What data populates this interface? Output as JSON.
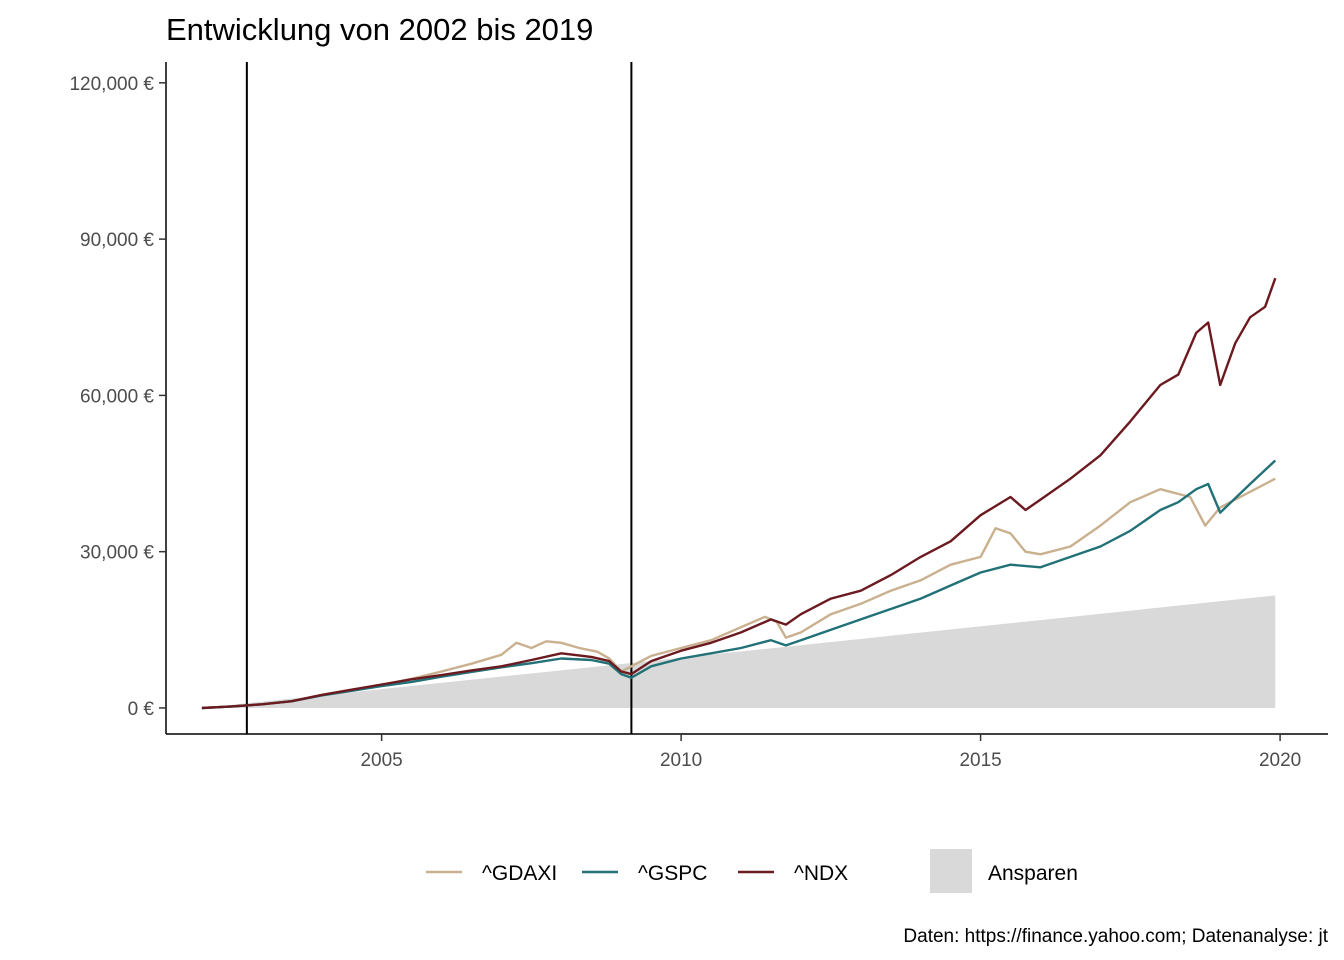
{
  "chart_data": {
    "type": "line",
    "title": "Entwicklung von 2002 bis 2019",
    "caption": "Daten: https://finance.yahoo.com; Datenanalyse: jt",
    "xlabel": "",
    "ylabel": "",
    "xlim": [
      2001.4,
      2020.8
    ],
    "ylim": [
      -5000,
      124000
    ],
    "x_ticks": [
      2005,
      2010,
      2015,
      2020
    ],
    "y_ticks": [
      {
        "value": 0,
        "label": "0 €"
      },
      {
        "value": 30000,
        "label": "30,000 €"
      },
      {
        "value": 60000,
        "label": "60,000 €"
      },
      {
        "value": 90000,
        "label": "90,000 €"
      },
      {
        "value": 120000,
        "label": "120,000 €"
      }
    ],
    "vertical_lines": [
      2002.75,
      2009.17
    ],
    "grid": false,
    "legend_position": "bottom",
    "area": {
      "name": "Ansparen",
      "color": "#d9d9d9",
      "x": [
        2002.0,
        2019.92
      ],
      "y": [
        0,
        21600
      ]
    },
    "series": [
      {
        "name": "^GDAXI",
        "color": "#c9b08f",
        "x": [
          2002.0,
          2002.5,
          2003.0,
          2003.5,
          2004.0,
          2004.5,
          2005.0,
          2005.5,
          2006.0,
          2006.5,
          2007.0,
          2007.25,
          2007.5,
          2007.75,
          2008.0,
          2008.3,
          2008.6,
          2008.8,
          2009.0,
          2009.17,
          2009.5,
          2010.0,
          2010.5,
          2011.0,
          2011.4,
          2011.6,
          2011.75,
          2012.0,
          2012.5,
          2013.0,
          2013.5,
          2014.0,
          2014.5,
          2015.0,
          2015.25,
          2015.5,
          2015.75,
          2016.0,
          2016.5,
          2017.0,
          2017.5,
          2018.0,
          2018.5,
          2018.75,
          2019.0,
          2019.5,
          2019.92
        ],
        "y": [
          0,
          300,
          700,
          1300,
          2500,
          3500,
          4400,
          5600,
          7000,
          8500,
          10200,
          12500,
          11500,
          12800,
          12500,
          11500,
          10800,
          9500,
          7000,
          8000,
          10000,
          11500,
          13000,
          15500,
          17500,
          16500,
          13500,
          14500,
          18000,
          20000,
          22500,
          24500,
          27500,
          29000,
          34500,
          33500,
          30000,
          29500,
          31000,
          35000,
          39500,
          42000,
          40500,
          35000,
          38500,
          41500,
          44000
        ]
      },
      {
        "name": "^GSPC",
        "color": "#217177",
        "x": [
          2002.0,
          2002.5,
          2003.0,
          2003.5,
          2004.0,
          2004.5,
          2005.0,
          2005.5,
          2006.0,
          2006.5,
          2007.0,
          2007.5,
          2008.0,
          2008.5,
          2008.8,
          2009.0,
          2009.17,
          2009.5,
          2010.0,
          2010.5,
          2011.0,
          2011.5,
          2011.75,
          2012.0,
          2012.5,
          2013.0,
          2013.5,
          2014.0,
          2014.5,
          2015.0,
          2015.5,
          2016.0,
          2016.5,
          2017.0,
          2017.5,
          2018.0,
          2018.3,
          2018.6,
          2018.8,
          2019.0,
          2019.5,
          2019.92
        ],
        "y": [
          0,
          300,
          700,
          1300,
          2400,
          3300,
          4200,
          5000,
          6000,
          6900,
          7800,
          8600,
          9500,
          9200,
          8500,
          6500,
          5800,
          8000,
          9500,
          10500,
          11500,
          13000,
          12000,
          13000,
          15000,
          17000,
          19000,
          21000,
          23500,
          26000,
          27500,
          27000,
          29000,
          31000,
          34000,
          38000,
          39500,
          42000,
          43000,
          37500,
          43000,
          47500
        ]
      },
      {
        "name": "^NDX",
        "color": "#6b1a20",
        "x": [
          2002.0,
          2002.5,
          2003.0,
          2003.5,
          2004.0,
          2004.5,
          2005.0,
          2005.5,
          2006.0,
          2006.5,
          2007.0,
          2007.5,
          2008.0,
          2008.5,
          2008.8,
          2009.0,
          2009.17,
          2009.5,
          2010.0,
          2010.5,
          2011.0,
          2011.5,
          2011.75,
          2012.0,
          2012.5,
          2013.0,
          2013.5,
          2014.0,
          2014.5,
          2015.0,
          2015.5,
          2015.75,
          2016.0,
          2016.5,
          2017.0,
          2017.5,
          2018.0,
          2018.3,
          2018.6,
          2018.8,
          2019.0,
          2019.25,
          2019.5,
          2019.75,
          2019.92
        ],
        "y": [
          0,
          300,
          700,
          1300,
          2500,
          3500,
          4500,
          5500,
          6300,
          7200,
          8000,
          9200,
          10500,
          9800,
          9000,
          7000,
          6500,
          9000,
          11000,
          12500,
          14500,
          17000,
          16000,
          18000,
          21000,
          22500,
          25500,
          29000,
          32000,
          37000,
          40500,
          38000,
          40000,
          44000,
          48500,
          55000,
          62000,
          64000,
          72000,
          74000,
          62000,
          70000,
          75000,
          77000,
          82500
        ]
      }
    ]
  }
}
